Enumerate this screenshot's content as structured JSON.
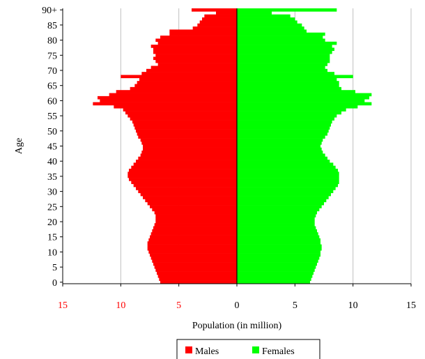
{
  "chart_data": {
    "type": "bar",
    "orientation": "horizontal",
    "subtype": "population-pyramid",
    "ages": [
      0,
      1,
      2,
      3,
      4,
      5,
      6,
      7,
      8,
      9,
      10,
      11,
      12,
      13,
      14,
      15,
      16,
      17,
      18,
      19,
      20,
      21,
      22,
      23,
      24,
      25,
      26,
      27,
      28,
      29,
      30,
      31,
      32,
      33,
      34,
      35,
      36,
      37,
      38,
      39,
      40,
      41,
      42,
      43,
      44,
      45,
      46,
      47,
      48,
      49,
      50,
      51,
      52,
      53,
      54,
      55,
      56,
      57,
      58,
      59,
      60,
      61,
      62,
      63,
      64,
      65,
      66,
      67,
      68,
      69,
      70,
      71,
      72,
      73,
      74,
      75,
      76,
      77,
      78,
      79,
      80,
      81,
      82,
      83,
      84,
      85,
      86,
      87,
      88,
      89,
      90
    ],
    "series": [
      {
        "name": "Males",
        "color": "#ff0000",
        "values": [
          6.6,
          6.7,
          6.8,
          6.9,
          7.0,
          7.1,
          7.2,
          7.3,
          7.4,
          7.5,
          7.6,
          7.7,
          7.7,
          7.7,
          7.6,
          7.5,
          7.4,
          7.3,
          7.2,
          7.1,
          7.0,
          7.0,
          7.0,
          7.1,
          7.3,
          7.5,
          7.7,
          7.9,
          8.1,
          8.3,
          8.5,
          8.7,
          8.9,
          9.1,
          9.3,
          9.4,
          9.4,
          9.3,
          9.1,
          8.9,
          8.7,
          8.5,
          8.3,
          8.2,
          8.1,
          8.1,
          8.2,
          8.3,
          8.5,
          8.6,
          8.7,
          8.8,
          8.9,
          9.0,
          9.2,
          9.4,
          9.6,
          9.8,
          10.6,
          12.4,
          11.8,
          12.0,
          11.0,
          10.4,
          9.2,
          8.8,
          8.6,
          8.4,
          10.0,
          8.2,
          7.8,
          7.4,
          6.8,
          7.0,
          7.2,
          7.0,
          7.2,
          7.2,
          7.4,
          6.8,
          7.0,
          6.6,
          5.8,
          5.8,
          3.8,
          3.4,
          3.2,
          3.0,
          2.8,
          1.8,
          3.9
        ]
      },
      {
        "name": "Females",
        "color": "#00ff00",
        "values": [
          6.3,
          6.4,
          6.5,
          6.6,
          6.7,
          6.8,
          6.9,
          7.0,
          7.1,
          7.2,
          7.2,
          7.3,
          7.3,
          7.2,
          7.2,
          7.1,
          7.0,
          6.9,
          6.8,
          6.7,
          6.7,
          6.7,
          6.8,
          6.9,
          7.1,
          7.3,
          7.5,
          7.7,
          7.9,
          8.1,
          8.3,
          8.5,
          8.7,
          8.8,
          8.8,
          8.8,
          8.8,
          8.7,
          8.5,
          8.3,
          8.0,
          7.8,
          7.6,
          7.4,
          7.3,
          7.2,
          7.3,
          7.4,
          7.6,
          7.8,
          7.9,
          8.0,
          8.1,
          8.2,
          8.4,
          8.6,
          9.0,
          9.4,
          10.4,
          11.6,
          11.0,
          11.4,
          11.6,
          10.2,
          9.0,
          8.8,
          8.8,
          8.6,
          10.0,
          8.4,
          7.8,
          7.6,
          7.8,
          8.0,
          8.0,
          8.0,
          8.2,
          8.4,
          8.2,
          8.6,
          7.6,
          7.4,
          7.6,
          6.0,
          5.8,
          5.6,
          5.2,
          5.0,
          4.6,
          3.0,
          8.6
        ]
      }
    ],
    "xlabel": "Population (in million)",
    "ylabel": "Age",
    "xlim": [
      -15,
      15
    ],
    "ylim": [
      0,
      90
    ],
    "x_ticks": [
      -15,
      -10,
      -5,
      0,
      5,
      10,
      15
    ],
    "x_tick_labels": [
      "15",
      "10",
      "5",
      "0",
      "5",
      "10",
      "15"
    ],
    "x_tick_colors": [
      "#ff0000",
      "#ff0000",
      "#ff0000",
      "#000000",
      "#000000",
      "#000000",
      "#000000"
    ],
    "y_ticks": [
      0,
      5,
      10,
      15,
      20,
      25,
      30,
      35,
      40,
      45,
      50,
      55,
      60,
      65,
      70,
      75,
      80,
      85,
      90
    ],
    "y_tick_labels": [
      "0",
      "5",
      "10",
      "15",
      "20",
      "25",
      "30",
      "35",
      "40",
      "45",
      "50",
      "55",
      "60",
      "65",
      "70",
      "75",
      "80",
      "85",
      "90+"
    ],
    "grid": "vertical",
    "legend": {
      "position": "bottom",
      "entries": [
        "Males",
        "Females"
      ]
    }
  }
}
